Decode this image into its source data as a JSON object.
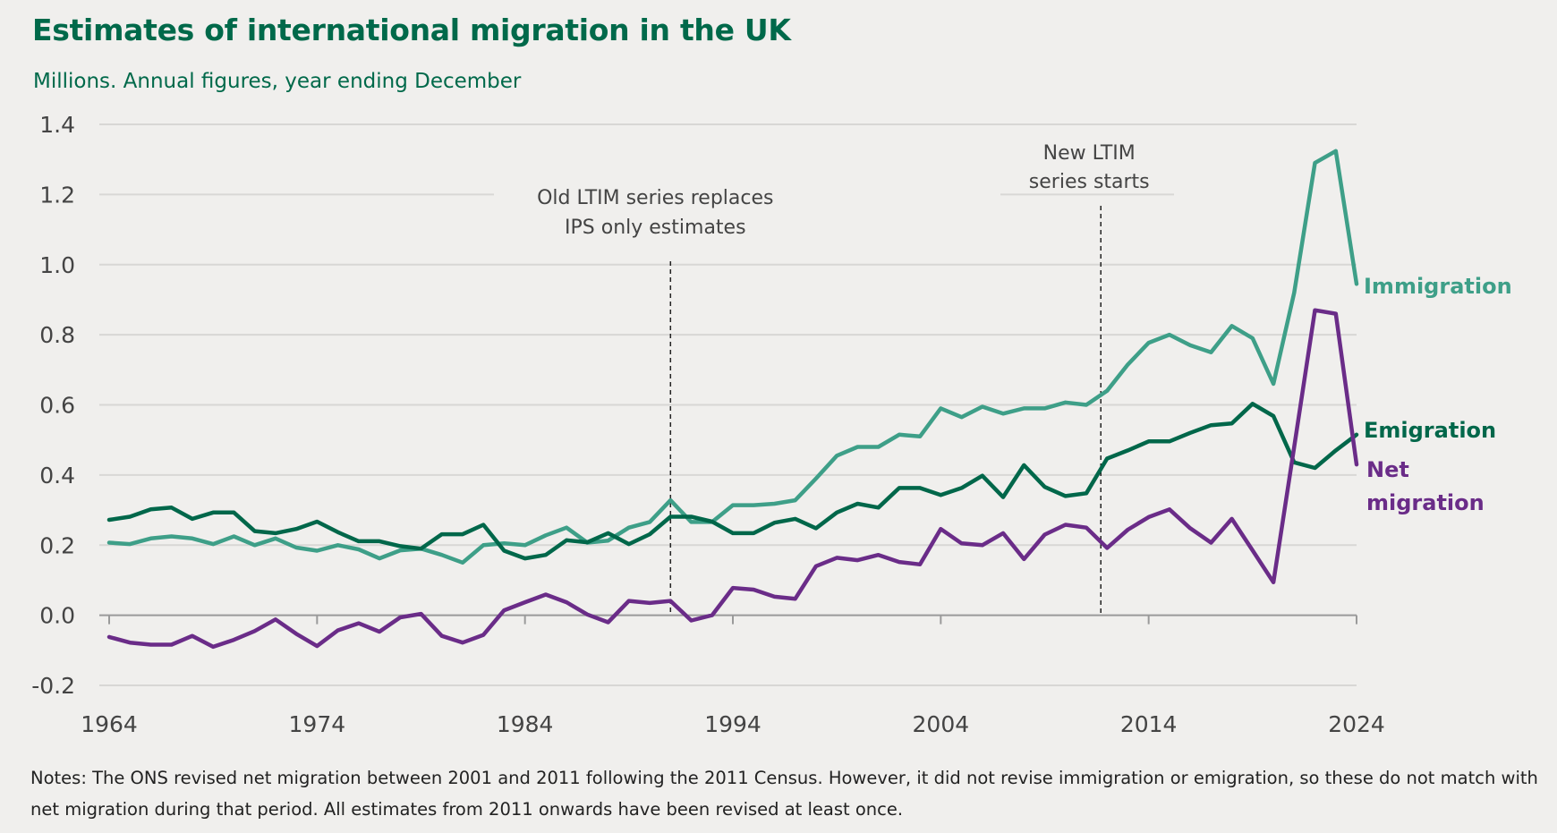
{
  "chart_data": {
    "type": "line",
    "title": "Estimates of international migration in the UK",
    "subtitle": "Millions. Annual figures, year ending December",
    "xlim": [
      1964,
      2024
    ],
    "ylim": [
      -0.2,
      1.4
    ],
    "xticks": [
      1964,
      1974,
      1984,
      1994,
      2004,
      2014,
      2024
    ],
    "yticks": [
      -0.2,
      0.0,
      0.2,
      0.4,
      0.6,
      0.8,
      1.0,
      1.2,
      1.4
    ],
    "ytick_labels": [
      "-0.2",
      "0.0",
      "0.2",
      "0.4",
      "0.6",
      "0.8",
      "1.0",
      "1.2",
      "1.4"
    ],
    "grid": true,
    "legend": "direct labels at line ends (right)",
    "x": [
      1964,
      1965,
      1966,
      1967,
      1968,
      1969,
      1970,
      1971,
      1972,
      1973,
      1974,
      1975,
      1976,
      1977,
      1978,
      1979,
      1980,
      1981,
      1982,
      1983,
      1984,
      1985,
      1986,
      1987,
      1988,
      1989,
      1990,
      1991,
      1992,
      1993,
      1994,
      1995,
      1996,
      1997,
      1998,
      1999,
      2000,
      2001,
      2002,
      2003,
      2004,
      2005,
      2006,
      2007,
      2008,
      2009,
      2010,
      2011,
      2012,
      2013,
      2014,
      2015,
      2016,
      2017,
      2018,
      2019,
      2020,
      2021,
      2022,
      2023,
      2024
    ],
    "series": [
      {
        "name": "Immigration",
        "color": "#3e9f88",
        "values": [
          0.207,
          0.203,
          0.219,
          0.225,
          0.219,
          0.203,
          0.225,
          0.2,
          0.219,
          0.193,
          0.184,
          0.2,
          0.188,
          0.162,
          0.185,
          0.19,
          0.172,
          0.15,
          0.2,
          0.205,
          0.2,
          0.228,
          0.25,
          0.207,
          0.213,
          0.25,
          0.266,
          0.328,
          0.266,
          0.266,
          0.314,
          0.314,
          0.318,
          0.328,
          0.39,
          0.455,
          0.48,
          0.48,
          0.515,
          0.51,
          0.59,
          0.565,
          0.595,
          0.575,
          0.59,
          0.59,
          0.607,
          0.6,
          0.64,
          0.715,
          0.777,
          0.8,
          0.77,
          0.75,
          0.825,
          0.79,
          0.66,
          0.92,
          1.29,
          1.324,
          0.945
        ]
      },
      {
        "name": "Emigration",
        "color": "#00674a",
        "values": [
          0.272,
          0.281,
          0.302,
          0.307,
          0.275,
          0.293,
          0.293,
          0.24,
          0.234,
          0.246,
          0.267,
          0.237,
          0.211,
          0.211,
          0.197,
          0.19,
          0.231,
          0.231,
          0.258,
          0.184,
          0.162,
          0.172,
          0.214,
          0.208,
          0.234,
          0.203,
          0.231,
          0.281,
          0.281,
          0.267,
          0.234,
          0.234,
          0.264,
          0.275,
          0.248,
          0.293,
          0.318,
          0.307,
          0.363,
          0.363,
          0.343,
          0.363,
          0.398,
          0.337,
          0.428,
          0.366,
          0.34,
          0.348,
          0.447,
          0.47,
          0.496,
          0.496,
          0.52,
          0.542,
          0.547,
          0.603,
          0.568,
          0.436,
          0.42,
          0.47,
          0.515
        ]
      },
      {
        "name": "Net migration",
        "color": "#6a2c88",
        "values": [
          -0.062,
          -0.078,
          -0.084,
          -0.084,
          -0.059,
          -0.09,
          -0.07,
          -0.045,
          -0.012,
          -0.053,
          -0.088,
          -0.043,
          -0.023,
          -0.047,
          -0.006,
          0.004,
          -0.059,
          -0.078,
          -0.056,
          0.014,
          0.037,
          0.059,
          0.037,
          0.002,
          -0.02,
          0.041,
          0.035,
          0.041,
          -0.015,
          0.0,
          0.078,
          0.073,
          0.053,
          0.047,
          0.14,
          0.164,
          0.157,
          0.172,
          0.152,
          0.145,
          0.246,
          0.205,
          0.2,
          0.234,
          0.16,
          0.23,
          0.258,
          0.25,
          0.192,
          0.244,
          0.28,
          0.302,
          0.248,
          0.207,
          0.275,
          0.185,
          0.094,
          0.48,
          0.87,
          0.86,
          0.43
        ]
      }
    ],
    "series_labels": {
      "immigration": "Immigration",
      "emigration": "Emigration",
      "net_line1": "Net",
      "net_line2": "migration"
    },
    "annotations": [
      {
        "x": 1991,
        "lines": [
          "Old LTIM series replaces",
          "IPS only estimates"
        ]
      },
      {
        "x": 2011.7,
        "lines": [
          "New LTIM",
          "series starts"
        ]
      }
    ]
  },
  "notes": "Notes: The ONS revised net migration between 2001 and 2011 following the 2011 Census. However, it did not revise immigration or emigration, so these do not match with net migration during that period. All estimates from 2011 onwards have been revised at least once."
}
